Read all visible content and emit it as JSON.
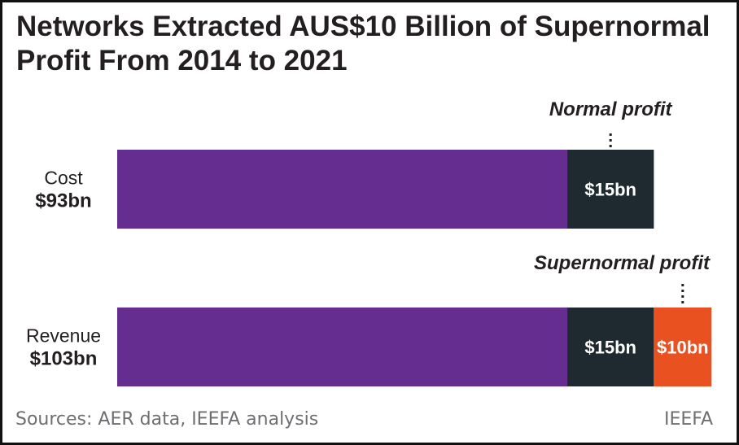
{
  "chart_data": {
    "type": "bar",
    "orientation": "horizontal",
    "stacked": true,
    "title": "Networks Extracted AUS$10 Billion of Supernormal Profit From 2014 to 2021",
    "rows": [
      {
        "label": "Cost",
        "total_label": "$93bn",
        "total": 93,
        "segments": [
          {
            "value": 78,
            "color": "#642d8f",
            "label": ""
          },
          {
            "value": 15,
            "color": "#1f2a30",
            "label": "$15bn"
          }
        ]
      },
      {
        "label": "Revenue",
        "total_label": "$103bn",
        "total": 103,
        "segments": [
          {
            "value": 78,
            "color": "#642d8f",
            "label": ""
          },
          {
            "value": 15,
            "color": "#1f2a30",
            "label": "$15bn"
          },
          {
            "value": 10,
            "color": "#ea5121",
            "label": "$10bn"
          }
        ]
      }
    ],
    "annotations": [
      {
        "text": "Normal profit",
        "row": 0,
        "segment": 1
      },
      {
        "text": "Supernormal profit",
        "row": 1,
        "segment": 2
      }
    ],
    "source": "Sources: AER data, IEEFA analysis",
    "brand": "IEEFA"
  }
}
